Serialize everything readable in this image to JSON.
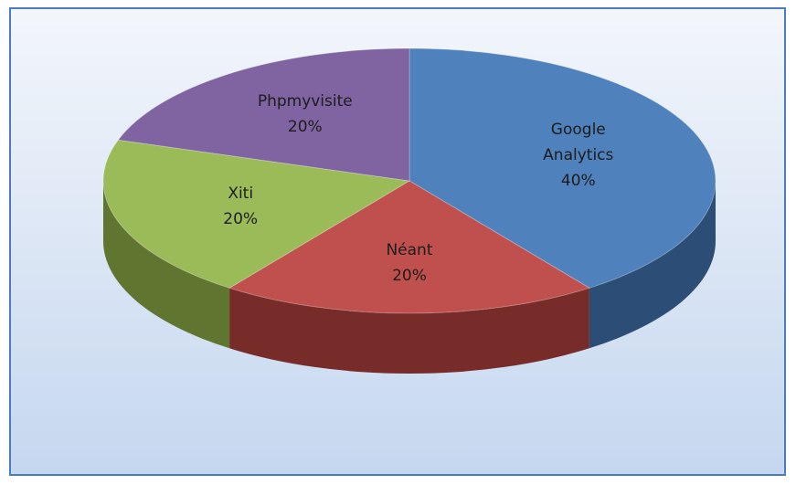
{
  "chart_data": {
    "type": "pie",
    "categories": [
      "Google Analytics",
      "Néant",
      "Xiti",
      "Phpmyvisite"
    ],
    "values": [
      40,
      20,
      20,
      20
    ],
    "value_labels": [
      "40%",
      "20%",
      "20%",
      "20%"
    ],
    "colors": [
      "#4f81bd",
      "#c0504d",
      "#9bbb59",
      "#8064a2"
    ],
    "side_colors": [
      "#2c4d75",
      "#772c2a",
      "#5f7530",
      "#4d3b62"
    ]
  }
}
